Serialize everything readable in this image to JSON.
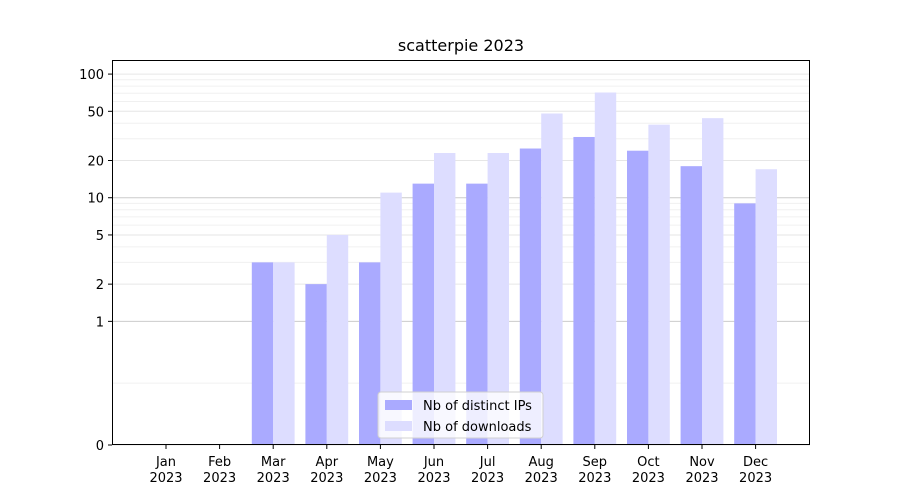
{
  "chart_data": {
    "type": "bar",
    "title": "scatterpie 2023",
    "xlabel": "",
    "ylabel": "",
    "categories": [
      [
        "Jan",
        "2023"
      ],
      [
        "Feb",
        "2023"
      ],
      [
        "Mar",
        "2023"
      ],
      [
        "Apr",
        "2023"
      ],
      [
        "May",
        "2023"
      ],
      [
        "Jun",
        "2023"
      ],
      [
        "Jul",
        "2023"
      ],
      [
        "Aug",
        "2023"
      ],
      [
        "Sep",
        "2023"
      ],
      [
        "Oct",
        "2023"
      ],
      [
        "Nov",
        "2023"
      ],
      [
        "Dec",
        "2023"
      ]
    ],
    "yscale": "symlog",
    "ylim": [
      0,
      100
    ],
    "yticks": [
      0,
      1,
      2,
      5,
      10,
      20,
      50,
      100
    ],
    "grid": true,
    "legend_position": "bottom-center",
    "series": [
      {
        "name": "Nb of distinct IPs",
        "color": "#aaaaff",
        "values": [
          0,
          0,
          3,
          2,
          3,
          13,
          13,
          25,
          31,
          24,
          18,
          9
        ]
      },
      {
        "name": "Nb of downloads",
        "color": "#ddddff",
        "values": [
          0,
          0,
          3,
          5,
          11,
          23,
          23,
          48,
          71,
          39,
          44,
          17
        ]
      }
    ]
  }
}
